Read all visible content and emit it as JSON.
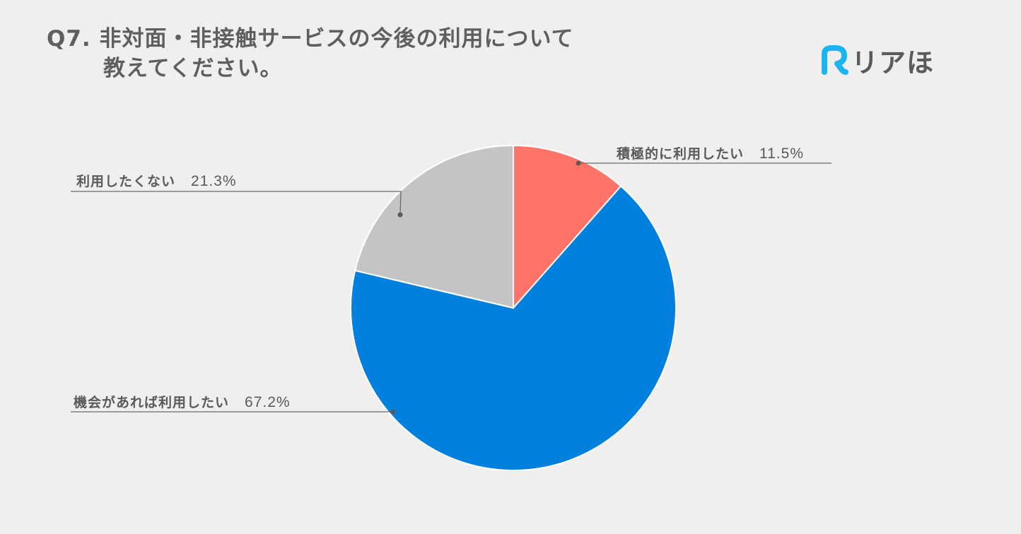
{
  "header": {
    "title_line1": "Q7. 非対面・非接触サービスの今後の利用について",
    "title_line2": "教えてください。"
  },
  "logo": {
    "icon": "r-logo-icon",
    "text": "リアほ",
    "icon_color": "#1ab4f0"
  },
  "chart_data": {
    "type": "pie",
    "title": "Q7. 非対面・非接触サービスの今後の利用について教えてください。",
    "categories": [
      "積極的に利用したい",
      "機会があれば利用したい",
      "利用したくない"
    ],
    "values": [
      11.5,
      67.2,
      21.3
    ],
    "unit": "%",
    "colors": [
      "#ff7369",
      "#0180dd",
      "#c4c4c4"
    ],
    "start_angle_deg": 0,
    "direction": "clockwise",
    "labels": [
      {
        "text": "積極的に利用したい",
        "value": "11.5%"
      },
      {
        "text": "機会があれば利用したい",
        "value": "67.2%"
      },
      {
        "text": "利用したくない",
        "value": "21.3%"
      }
    ],
    "legend": "none"
  }
}
